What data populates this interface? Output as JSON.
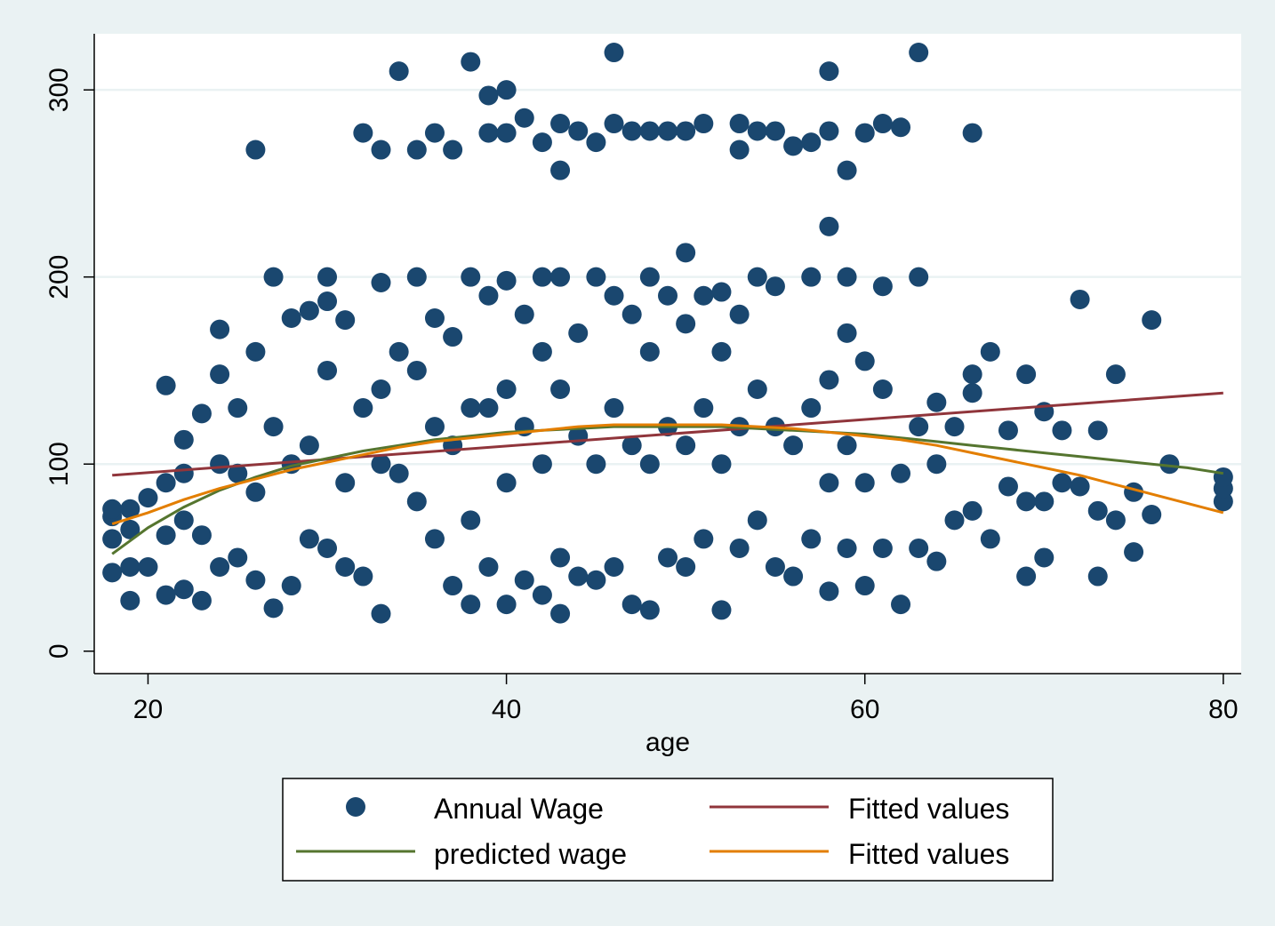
{
  "chart_data": {
    "type": "scatter",
    "title": "",
    "xlabel": "age",
    "ylabel": "",
    "xlim": [
      17,
      81
    ],
    "ylim": [
      -12,
      330
    ],
    "xticks": [
      20,
      40,
      60,
      80
    ],
    "yticks": [
      0,
      100,
      200,
      300
    ],
    "grid": "horizontal",
    "legend_position": "bottom",
    "colors": {
      "points": "#1a476f",
      "linear_fit": "#90353b",
      "predicted": "#55752f",
      "quadratic_fit": "#e37e00",
      "plot_background": "#ffffff",
      "outer_background": "#eaf2f3",
      "grid": "#eaf2f3"
    },
    "series": [
      {
        "name": "Annual Wage",
        "kind": "scatter",
        "x": [
          18,
          18,
          18,
          18,
          19,
          19,
          19,
          19,
          20,
          20,
          21,
          21,
          21,
          21,
          22,
          22,
          22,
          22,
          23,
          23,
          23,
          24,
          24,
          24,
          24,
          25,
          25,
          25,
          26,
          26,
          26,
          26,
          27,
          27,
          27,
          28,
          28,
          28,
          29,
          29,
          29,
          30,
          30,
          30,
          30,
          31,
          31,
          31,
          32,
          32,
          32,
          33,
          33,
          33,
          33,
          33,
          34,
          34,
          34,
          35,
          35,
          35,
          35,
          36,
          36,
          36,
          36,
          37,
          37,
          37,
          37,
          38,
          38,
          38,
          38,
          38,
          39,
          39,
          39,
          39,
          39,
          40,
          40,
          40,
          40,
          40,
          40,
          41,
          41,
          41,
          41,
          42,
          42,
          42,
          42,
          42,
          43,
          43,
          43,
          43,
          43,
          43,
          44,
          44,
          44,
          44,
          45,
          45,
          45,
          45,
          46,
          46,
          46,
          46,
          46,
          47,
          47,
          47,
          47,
          48,
          48,
          48,
          48,
          48,
          49,
          49,
          49,
          49,
          50,
          50,
          50,
          50,
          50,
          51,
          51,
          51,
          51,
          52,
          52,
          52,
          52,
          53,
          53,
          53,
          53,
          53,
          54,
          54,
          54,
          54,
          55,
          55,
          55,
          55,
          56,
          56,
          56,
          57,
          57,
          57,
          57,
          58,
          58,
          58,
          58,
          58,
          58,
          59,
          59,
          59,
          59,
          59,
          60,
          60,
          60,
          60,
          61,
          61,
          61,
          61,
          62,
          62,
          62,
          63,
          63,
          63,
          63,
          64,
          64,
          64,
          65,
          65,
          66,
          66,
          66,
          66,
          67,
          67,
          68,
          68,
          69,
          69,
          69,
          70,
          70,
          70,
          71,
          71,
          72,
          72,
          73,
          73,
          73,
          74,
          74,
          75,
          75,
          76,
          76,
          77,
          80,
          80,
          80
        ],
        "y": [
          42,
          60,
          72,
          76,
          27,
          45,
          65,
          76,
          45,
          82,
          30,
          62,
          90,
          142,
          33,
          70,
          95,
          113,
          27,
          62,
          127,
          45,
          100,
          148,
          172,
          50,
          95,
          130,
          38,
          85,
          160,
          268,
          23,
          120,
          200,
          35,
          100,
          178,
          60,
          110,
          182,
          55,
          150,
          200,
          187,
          45,
          90,
          177,
          40,
          130,
          277,
          20,
          100,
          140,
          197,
          268,
          95,
          160,
          310,
          80,
          150,
          200,
          268,
          60,
          120,
          178,
          277,
          35,
          110,
          168,
          268,
          25,
          70,
          130,
          200,
          315,
          45,
          130,
          190,
          277,
          297,
          25,
          90,
          140,
          198,
          277,
          300,
          38,
          120,
          180,
          285,
          30,
          100,
          160,
          200,
          272,
          20,
          50,
          140,
          200,
          257,
          282,
          40,
          115,
          170,
          278,
          38,
          100,
          200,
          272,
          45,
          130,
          190,
          282,
          320,
          25,
          110,
          180,
          278,
          22,
          100,
          160,
          200,
          278,
          50,
          120,
          190,
          278,
          45,
          110,
          175,
          213,
          278,
          60,
          130,
          190,
          282,
          22,
          100,
          160,
          192,
          55,
          120,
          180,
          282,
          268,
          70,
          140,
          200,
          278,
          45,
          120,
          195,
          278,
          40,
          110,
          270,
          60,
          130,
          200,
          272,
          32,
          90,
          145,
          227,
          278,
          310,
          55,
          110,
          170,
          257,
          200,
          35,
          90,
          155,
          277,
          55,
          140,
          195,
          282,
          25,
          95,
          280,
          55,
          120,
          200,
          320,
          48,
          100,
          133,
          70,
          120,
          75,
          138,
          148,
          277,
          60,
          160,
          88,
          118,
          40,
          80,
          148,
          50,
          80,
          128,
          90,
          118,
          88,
          188,
          40,
          75,
          118,
          70,
          148,
          53,
          85,
          73,
          177,
          100,
          80,
          87,
          93
        ]
      },
      {
        "name": "Fitted values",
        "kind": "line",
        "x": [
          18,
          80
        ],
        "y": [
          94,
          138
        ]
      },
      {
        "name": "predicted wage",
        "kind": "line",
        "x": [
          18,
          20,
          22,
          24,
          26,
          28,
          30,
          32,
          34,
          36,
          38,
          40,
          42,
          44,
          46,
          48,
          50,
          52,
          54,
          56,
          58,
          60,
          62,
          64,
          66,
          68,
          70,
          72,
          74,
          76,
          78,
          80
        ],
        "y": [
          52,
          66,
          77,
          86,
          93,
          99,
          103,
          107,
          110,
          113,
          115,
          117,
          118,
          119,
          120,
          120,
          120,
          120,
          119,
          118,
          117,
          116,
          114,
          112,
          110,
          108,
          106,
          104,
          102,
          100,
          98,
          95
        ]
      },
      {
        "name": "Fitted values",
        "kind": "line",
        "x": [
          18,
          20,
          22,
          24,
          26,
          28,
          30,
          32,
          34,
          36,
          38,
          40,
          42,
          44,
          46,
          48,
          50,
          52,
          54,
          56,
          58,
          60,
          62,
          64,
          66,
          68,
          70,
          72,
          74,
          76,
          78,
          80
        ],
        "y": [
          68,
          74,
          81,
          87,
          92,
          97,
          101,
          105,
          109,
          112,
          114,
          116,
          118,
          120,
          121,
          121,
          121,
          121,
          120,
          119,
          117,
          115,
          113,
          110,
          106,
          102,
          98,
          94,
          89,
          84,
          79,
          74
        ]
      }
    ],
    "legend": {
      "entries": [
        "Annual Wage",
        "Fitted values",
        "predicted wage",
        "Fitted values"
      ]
    }
  }
}
